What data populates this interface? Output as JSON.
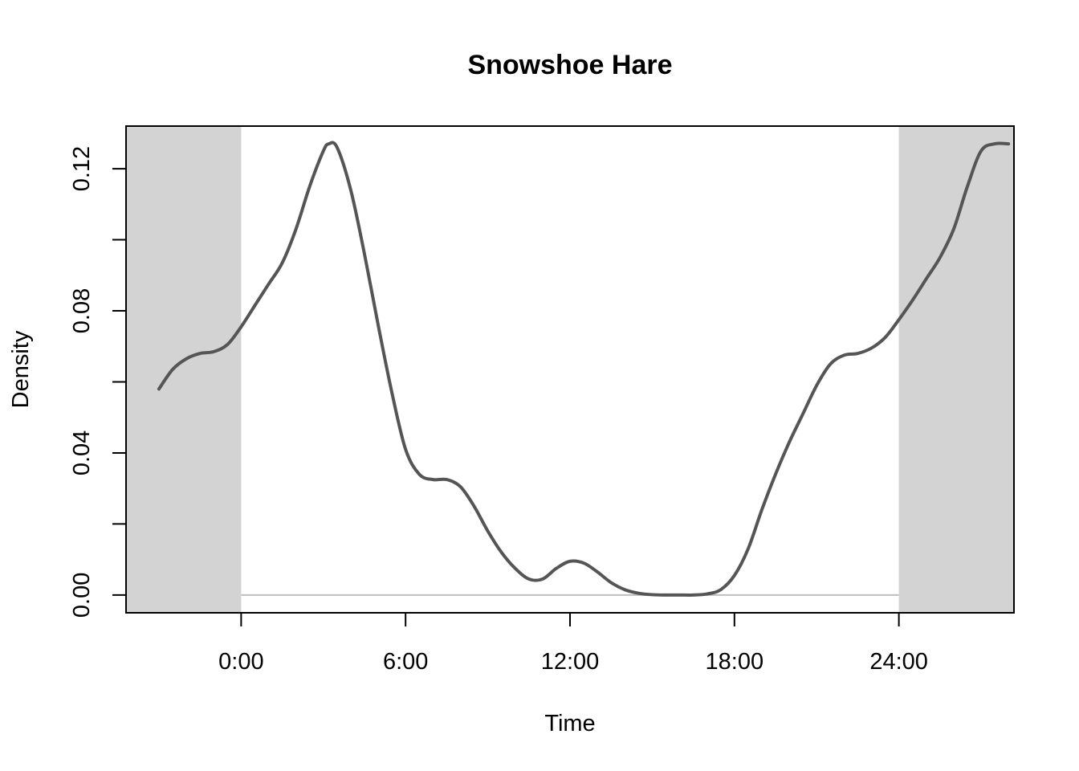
{
  "chart_data": {
    "type": "line",
    "title": "Snowshoe Hare",
    "xlabel": "Time",
    "ylabel": "Density",
    "xlim": [
      -4.2,
      28.2
    ],
    "ylim": [
      -0.005,
      0.132
    ],
    "x_ticks": [
      {
        "value": 0,
        "label": "0:00"
      },
      {
        "value": 6,
        "label": "6:00"
      },
      {
        "value": 12,
        "label": "12:00"
      },
      {
        "value": 18,
        "label": "18:00"
      },
      {
        "value": 24,
        "label": "24:00"
      }
    ],
    "y_ticks": [
      {
        "value": 0.0,
        "label": "0.00"
      },
      {
        "value": 0.02,
        "label": ""
      },
      {
        "value": 0.04,
        "label": "0.04"
      },
      {
        "value": 0.06,
        "label": ""
      },
      {
        "value": 0.08,
        "label": "0.08"
      },
      {
        "value": 0.1,
        "label": ""
      },
      {
        "value": 0.12,
        "label": "0.12"
      }
    ],
    "shaded_regions": [
      {
        "from": -4.2,
        "to": 0
      },
      {
        "from": 24,
        "to": 28.2
      }
    ],
    "baseline": {
      "y": 0,
      "from": 0,
      "to": 24
    },
    "colors": {
      "line": "#555555",
      "shade": "#d3d3d3",
      "baseline": "#bebebe"
    },
    "grid": false,
    "series": [
      {
        "x": [
          -3.0,
          -2.5,
          -2.0,
          -1.5,
          -1.0,
          -0.5,
          0.0,
          0.5,
          1.0,
          1.5,
          2.0,
          2.5,
          3.0,
          3.2,
          3.5,
          4.0,
          4.5,
          5.0,
          5.5,
          6.0,
          6.5,
          7.0,
          7.5,
          8.0,
          8.5,
          9.0,
          9.5,
          10.0,
          10.5,
          11.0,
          11.5,
          12.0,
          12.5,
          13.0,
          13.5,
          14.0,
          14.5,
          15.0,
          15.5,
          16.0,
          16.5,
          17.0,
          17.5,
          18.0,
          18.5,
          19.0,
          19.5,
          20.0,
          20.5,
          21.0,
          21.5,
          22.0,
          22.5,
          23.0,
          23.5,
          24.0,
          24.5,
          25.0,
          25.5,
          26.0,
          26.5,
          27.0,
          27.5,
          28.0
        ],
        "y": [
          0.058,
          0.0635,
          0.0665,
          0.068,
          0.0685,
          0.0705,
          0.0755,
          0.0815,
          0.0875,
          0.0935,
          0.103,
          0.115,
          0.125,
          0.127,
          0.126,
          0.114,
          0.096,
          0.076,
          0.057,
          0.041,
          0.034,
          0.0325,
          0.0325,
          0.0305,
          0.025,
          0.018,
          0.012,
          0.0075,
          0.0045,
          0.0045,
          0.0075,
          0.0095,
          0.009,
          0.0065,
          0.0035,
          0.0015,
          0.0005,
          0.0001,
          0.0,
          0.0,
          0.0,
          0.0003,
          0.0015,
          0.0055,
          0.013,
          0.024,
          0.034,
          0.043,
          0.051,
          0.059,
          0.065,
          0.0675,
          0.068,
          0.0695,
          0.0725,
          0.0775,
          0.083,
          0.089,
          0.095,
          0.103,
          0.115,
          0.125,
          0.127,
          0.127
        ]
      }
    ]
  }
}
